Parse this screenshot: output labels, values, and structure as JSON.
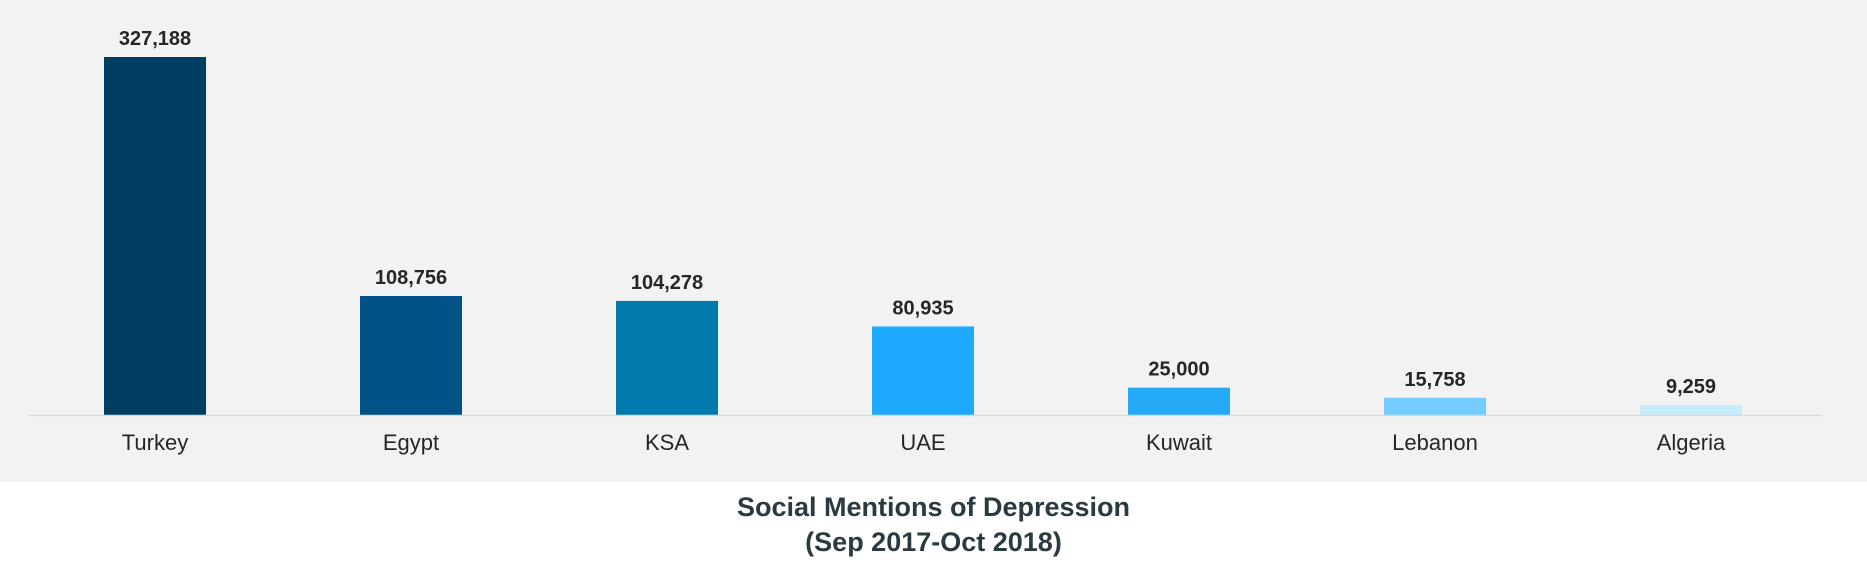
{
  "chart_data": {
    "type": "bar",
    "title": "Social Mentions of Depression",
    "subtitle": "(Sep 2017-Oct 2018)",
    "xlabel": "",
    "ylabel": "",
    "categories": [
      "Turkey",
      "Egypt",
      "KSA",
      "UAE",
      "Kuwait",
      "Lebanon",
      "Algeria"
    ],
    "values": [
      327188,
      108756,
      104278,
      80935,
      25000,
      15758,
      9259
    ],
    "value_labels": [
      "327,188",
      "108,756",
      "104,278",
      "80,935",
      "25,000",
      "15,758",
      "9,259"
    ],
    "bar_colors": [
      "#003f63",
      "#005287",
      "#007aad",
      "#1eaaff",
      "#26aaf8",
      "#75ccff",
      "#c6ecfb"
    ],
    "ylim": [
      0,
      327188
    ],
    "grid": false,
    "legend": "none"
  },
  "colors": {
    "panel_background": "#f2f2f2",
    "axis_line": "#d9d9d9",
    "text": "#262626",
    "caption": "#2a3a40"
  }
}
